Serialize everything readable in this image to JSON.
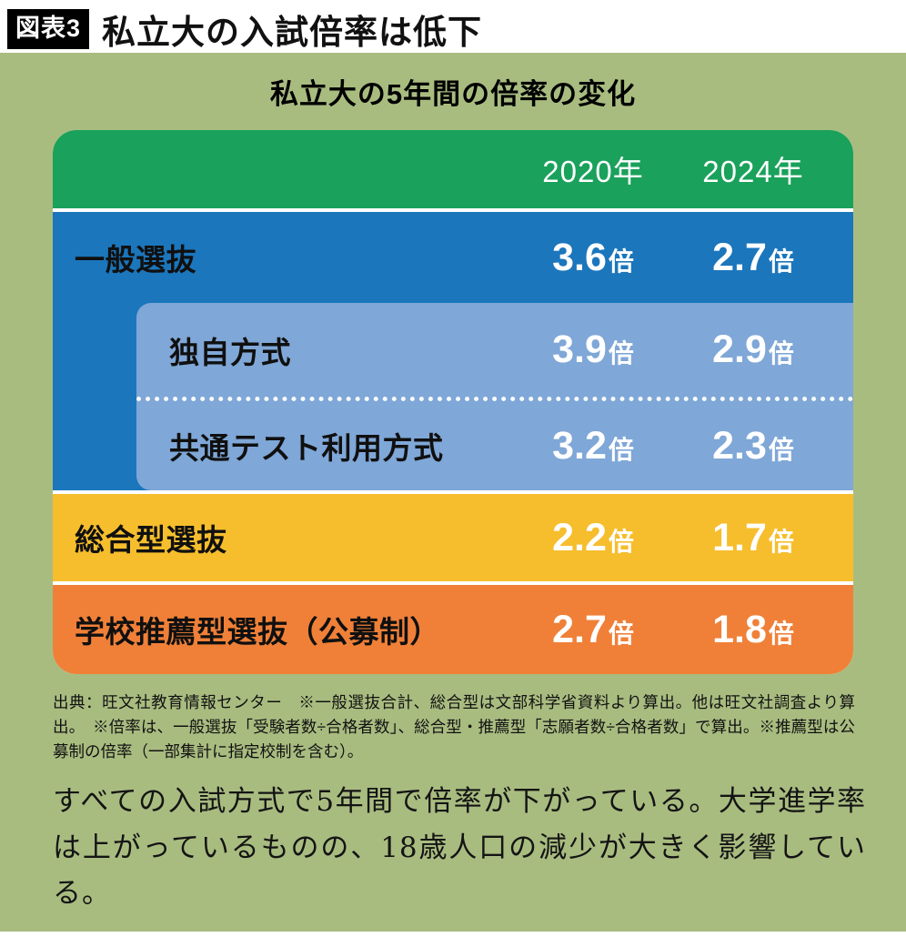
{
  "header": {
    "tag": "図表3",
    "title": "私立大の入試倍率は低下"
  },
  "chart_data": {
    "type": "table",
    "title": "私立大の5年間の倍率の変化",
    "columns": [
      "2020年",
      "2024年"
    ],
    "unit": "倍",
    "rows": [
      {
        "label": "一般選抜",
        "group": "general",
        "values": [
          "3.6",
          "2.7"
        ]
      },
      {
        "label": "独自方式",
        "group": "general-sub",
        "values": [
          "3.9",
          "2.9"
        ]
      },
      {
        "label": "共通テスト利用方式",
        "group": "general-sub",
        "values": [
          "3.2",
          "2.3"
        ]
      },
      {
        "label": "総合型選抜",
        "group": "comprehensive",
        "values": [
          "2.2",
          "1.7"
        ]
      },
      {
        "label": "学校推薦型選抜（公募制）",
        "group": "recommendation",
        "values": [
          "2.7",
          "1.8"
        ]
      }
    ]
  },
  "footnote": "出典：旺文社教育情報センター　※一般選抜合計、総合型は文部科学省資料より算出。他は旺文社調査より算出。　※倍率は、一般選抜「受験者数÷合格者数」、総合型・推薦型「志願者数÷合格者数」で算出。※推薦型は公募制の倍率（一部集計に指定校制を含む）。",
  "body_text": "すべての入試方式で5年間で倍率が下がっている。大学進学率は上がっているものの、18歳人口の減少が大きく影響している。",
  "colors": {
    "background": "#a9bc80",
    "header_green": "#1aa15b",
    "dark_blue": "#1b76bc",
    "light_blue": "#7fa7d7",
    "yellow": "#f6be2d",
    "orange": "#f08038"
  }
}
